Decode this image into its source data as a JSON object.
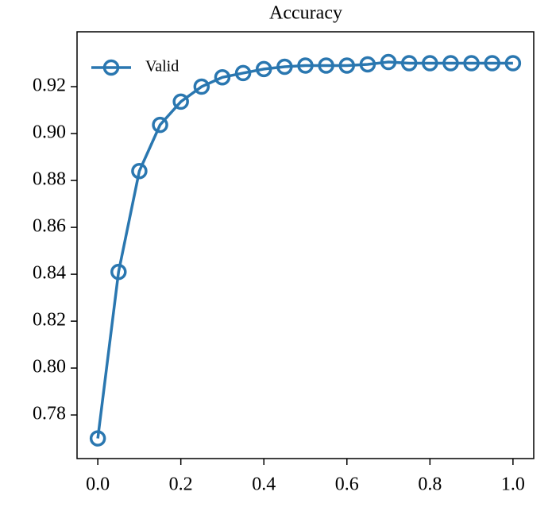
{
  "chart_data": {
    "type": "line",
    "title": "Accuracy",
    "x": [
      0,
      0.05,
      0.1,
      0.15,
      0.2,
      0.25,
      0.3,
      0.35,
      0.4,
      0.45,
      0.5,
      0.55,
      0.6,
      0.65,
      0.7,
      0.75,
      0.8,
      0.85,
      0.9,
      0.95,
      1
    ],
    "series": [
      {
        "name": "Valid",
        "color": "#2a77b0",
        "values": [
          0.77,
          0.841,
          0.884,
          0.9037,
          0.9136,
          0.92,
          0.924,
          0.9258,
          0.9275,
          0.9285,
          0.929,
          0.929,
          0.929,
          0.9295,
          0.9305,
          0.93,
          0.93,
          0.93,
          0.93,
          0.93,
          0.93
        ]
      }
    ],
    "xlim": [
      -0.05,
      1.05
    ],
    "ylim": [
      0.7614,
      0.9434
    ],
    "xticks": [
      {
        "value": 0,
        "label": "0.0"
      },
      0.2,
      0.4,
      0.6,
      0.8,
      {
        "value": 1,
        "label": "1.0"
      }
    ],
    "yticks": [
      0.78,
      {
        "value": 0.8,
        "label": "0.80"
      },
      0.82,
      0.84,
      0.86,
      0.88,
      {
        "value": 0.9,
        "label": "0.90"
      },
      0.92
    ],
    "legend": "upper left",
    "grid": false,
    "marker": "hollow-circle"
  }
}
